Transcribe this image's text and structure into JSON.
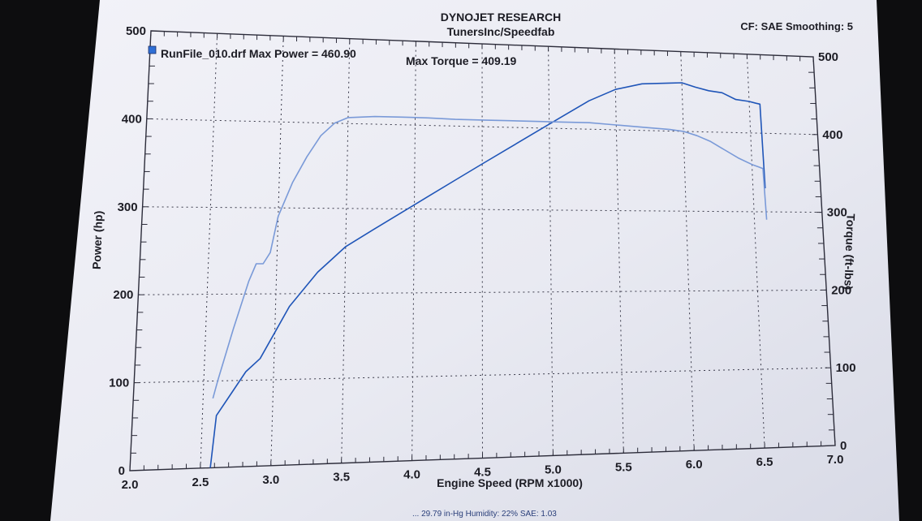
{
  "header": {
    "title": "DYNOJET RESEARCH",
    "subtitle": "TunersInc/Speedfab",
    "settings": "CF: SAE  Smoothing: 5"
  },
  "legend": {
    "run_file": "RunFile_010.drf Max Power = 460.90",
    "max_torque": "Max Torque = 409.19",
    "swatch_color": "#2f6fd6"
  },
  "footer": {
    "conditions": "... 29.79 in-Hg  Humidity: 22%  SAE: 1.03"
  },
  "chart_data": {
    "type": "line",
    "title": "DYNOJET RESEARCH",
    "xlabel": "Engine Speed (RPM x1000)",
    "ylabel": "Power (hp)",
    "y2label": "Torque (ft-lbs)",
    "xlim": [
      2.0,
      7.0
    ],
    "ylim": [
      0,
      500
    ],
    "y2lim": [
      0,
      500
    ],
    "grid": true,
    "legend_position": "top-left",
    "x_ticks": [
      "2.0",
      "2.5",
      "3.0",
      "3.5",
      "4.0",
      "4.5",
      "5.0",
      "5.5",
      "6.0",
      "6.5",
      "7.0"
    ],
    "y_ticks": [
      "0",
      "100",
      "200",
      "300",
      "400",
      "500"
    ],
    "y2_ticks": [
      "0",
      "100",
      "200",
      "300",
      "400",
      "500"
    ],
    "series": [
      {
        "name": "Power",
        "axis": "left",
        "color": "#1f55b8",
        "x": [
          2.57,
          2.6,
          2.7,
          2.8,
          2.9,
          3.0,
          3.1,
          3.2,
          3.3,
          3.4,
          3.5,
          3.7,
          3.9,
          4.1,
          4.3,
          4.5,
          4.7,
          4.9,
          5.1,
          5.3,
          5.5,
          5.7,
          5.9,
          6.0,
          6.1,
          6.2,
          6.3,
          6.4,
          6.5,
          6.55,
          6.58,
          6.59
        ],
        "y": [
          0,
          60,
          85,
          110,
          125,
          155,
          185,
          205,
          225,
          240,
          255,
          275,
          295,
          315,
          335,
          355,
          375,
          395,
          415,
          435,
          450,
          458,
          460,
          460.9,
          456,
          452,
          450,
          442,
          440,
          438,
          437,
          330
        ]
      },
      {
        "name": "Torque",
        "axis": "right",
        "color": "#7a9ad8",
        "x": [
          2.57,
          2.6,
          2.7,
          2.8,
          2.85,
          2.9,
          2.95,
          3.0,
          3.1,
          3.2,
          3.3,
          3.4,
          3.5,
          3.7,
          3.9,
          4.1,
          4.3,
          4.5,
          4.7,
          4.9,
          5.1,
          5.3,
          5.5,
          5.7,
          5.9,
          6.0,
          6.1,
          6.2,
          6.3,
          6.4,
          6.5,
          6.55,
          6.58,
          6.59
        ],
        "y": [
          80,
          100,
          160,
          215,
          235,
          235,
          248,
          290,
          330,
          360,
          385,
          400,
          407,
          409,
          409.19,
          409,
          408,
          408,
          408,
          408,
          408,
          408,
          406,
          404,
          402,
          400,
          395,
          388,
          378,
          368,
          360,
          357,
          355,
          290
        ]
      }
    ]
  }
}
